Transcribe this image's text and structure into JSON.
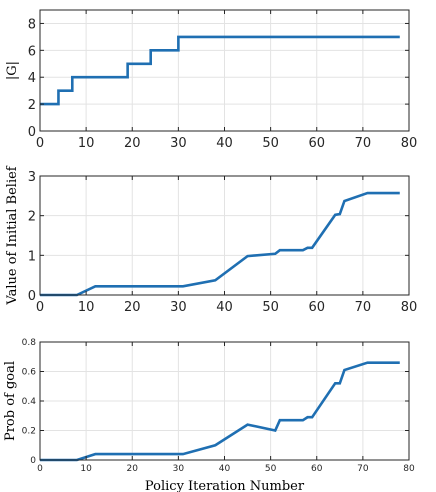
{
  "chart_data": [
    {
      "type": "line",
      "ylabel": "|G|",
      "xlabel": "",
      "xlim": [
        0,
        80
      ],
      "ylim": [
        0,
        9
      ],
      "xticks": [
        "0",
        "10",
        "20",
        "30",
        "40",
        "50",
        "60",
        "70",
        "80"
      ],
      "yticks": [
        "0",
        "2",
        "4",
        "6",
        "8"
      ],
      "grid": true,
      "step": true,
      "x": [
        0,
        4,
        7,
        19,
        24,
        30,
        78
      ],
      "y": [
        2,
        3,
        4,
        5,
        6,
        7,
        7
      ]
    },
    {
      "type": "line",
      "ylabel": "Value of Initial Belief",
      "xlabel": "",
      "xlim": [
        0,
        80
      ],
      "ylim": [
        0,
        3
      ],
      "xticks": [
        "0",
        "10",
        "20",
        "30",
        "40",
        "50",
        "60",
        "70",
        "80"
      ],
      "yticks": [
        "0",
        "1",
        "2",
        "3"
      ],
      "grid": true,
      "step": false,
      "x": [
        0,
        8,
        12,
        31,
        38,
        45,
        51,
        52,
        57,
        58,
        59,
        64,
        65,
        66,
        71,
        78
      ],
      "y": [
        0,
        0,
        0.22,
        0.22,
        0.37,
        0.98,
        1.04,
        1.13,
        1.13,
        1.19,
        1.19,
        2.02,
        2.04,
        2.37,
        2.57,
        2.57
      ]
    },
    {
      "type": "line",
      "ylabel": "Prob of goal",
      "xlabel": "Policy Iteration Number",
      "xlim": [
        0,
        80
      ],
      "ylim": [
        0,
        0.8
      ],
      "xticks": [
        "0",
        "10",
        "20",
        "30",
        "40",
        "50",
        "60",
        "70",
        "80"
      ],
      "yticks": [
        "0",
        "0.2",
        "0.4",
        "0.6",
        "0.8"
      ],
      "grid": true,
      "step": false,
      "x": [
        0,
        8,
        12,
        31,
        38,
        45,
        51,
        52,
        57,
        58,
        59,
        64,
        65,
        66,
        71,
        78
      ],
      "y": [
        0,
        0,
        0.04,
        0.04,
        0.1,
        0.24,
        0.2,
        0.27,
        0.27,
        0.29,
        0.29,
        0.52,
        0.52,
        0.61,
        0.66,
        0.66
      ]
    }
  ]
}
